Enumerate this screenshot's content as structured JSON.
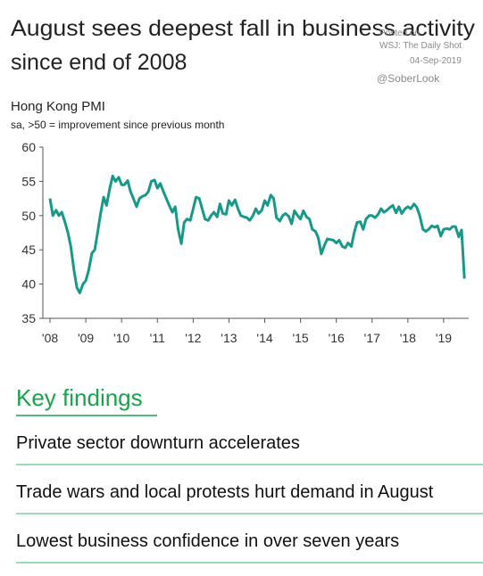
{
  "header": {
    "title": [
      "August sees deepest fall in business activity",
      "since end of 2008"
    ],
    "watermark": [
      "Posted on",
      "WSJ: The Daily Shot",
      "04-Sep-2019",
      "@SoberLook"
    ]
  },
  "chart_data": {
    "type": "line",
    "title": "Hong Kong PMI",
    "subtitle": "sa, >50 = improvement since previous month",
    "x": [
      2008.0,
      2008.08,
      2008.17,
      2008.25,
      2008.33,
      2008.42,
      2008.5,
      2008.58,
      2008.67,
      2008.75,
      2008.83,
      2008.92,
      2009.0,
      2009.08,
      2009.17,
      2009.25,
      2009.33,
      2009.42,
      2009.5,
      2009.58,
      2009.67,
      2009.75,
      2009.83,
      2009.92,
      2010.0,
      2010.08,
      2010.17,
      2010.25,
      2010.33,
      2010.42,
      2010.5,
      2010.58,
      2010.67,
      2010.75,
      2010.83,
      2010.92,
      2011.0,
      2011.08,
      2011.17,
      2011.25,
      2011.33,
      2011.42,
      2011.5,
      2011.58,
      2011.67,
      2011.75,
      2011.83,
      2011.92,
      2012.0,
      2012.08,
      2012.17,
      2012.25,
      2012.33,
      2012.42,
      2012.5,
      2012.58,
      2012.67,
      2012.75,
      2012.83,
      2012.92,
      2013.0,
      2013.08,
      2013.17,
      2013.25,
      2013.33,
      2013.42,
      2013.5,
      2013.58,
      2013.67,
      2013.75,
      2013.83,
      2013.92,
      2014.0,
      2014.08,
      2014.17,
      2014.25,
      2014.33,
      2014.42,
      2014.5,
      2014.58,
      2014.67,
      2014.75,
      2014.83,
      2014.92,
      2015.0,
      2015.08,
      2015.17,
      2015.25,
      2015.33,
      2015.42,
      2015.5,
      2015.58,
      2015.67,
      2015.75,
      2015.83,
      2015.92,
      2016.0,
      2016.08,
      2016.17,
      2016.25,
      2016.33,
      2016.42,
      2016.5,
      2016.58,
      2016.67,
      2016.75,
      2016.83,
      2016.92,
      2017.0,
      2017.08,
      2017.17,
      2017.25,
      2017.33,
      2017.42,
      2017.5,
      2017.58,
      2017.67,
      2017.75,
      2017.83,
      2017.92,
      2018.0,
      2018.08,
      2018.17,
      2018.25,
      2018.33,
      2018.42,
      2018.5,
      2018.58,
      2018.67,
      2018.75,
      2018.83,
      2018.92,
      2019.0,
      2019.08,
      2019.17,
      2019.25,
      2019.33,
      2019.42,
      2019.5,
      2019.58
    ],
    "series": [
      {
        "name": "Hong Kong PMI",
        "color": "#17998a",
        "values": [
          52.5,
          50,
          50.8,
          50,
          50.5,
          49,
          47.5,
          45.5,
          42,
          39.5,
          38.7,
          40,
          40.5,
          42,
          44.5,
          45,
          47.5,
          50.5,
          52.7,
          51.5,
          54,
          55.8,
          55,
          55.6,
          54.5,
          54.5,
          55.1,
          53.5,
          52.5,
          51.3,
          52.5,
          52.8,
          53,
          53.5,
          55,
          55.2,
          54,
          54.7,
          53.5,
          52.5,
          51.5,
          50.5,
          51.3,
          48,
          45.9,
          49,
          49.5,
          49.3,
          51,
          52.7,
          52.5,
          51,
          49.5,
          49.3,
          50,
          50.5,
          49.8,
          51.7,
          50.3,
          50.2,
          52.2,
          51.5,
          52.3,
          51,
          50,
          49.8,
          49.7,
          49.3,
          50,
          51,
          50.3,
          50.8,
          52.2,
          51.5,
          53,
          52.5,
          49.7,
          49.2,
          50,
          50.3,
          49.9,
          48.8,
          50.7,
          50,
          49.5,
          50.7,
          49.8,
          49.5,
          48,
          47.7,
          46.7,
          44.4,
          45.7,
          46.6,
          46.5,
          46.4,
          46,
          46.4,
          45.5,
          45.3,
          46,
          45.5,
          47.5,
          49,
          49.1,
          48,
          49.5,
          50,
          50,
          49.7,
          50.2,
          51,
          50.5,
          50.8,
          51.2,
          51.5,
          50.4,
          51.3,
          50.3,
          51,
          51.3,
          51,
          51.7,
          51.2,
          50,
          48,
          47.7,
          48,
          48.5,
          48.3,
          48.5,
          47,
          48,
          48.1,
          48,
          48.4,
          48.4,
          46.9,
          47.9,
          40.8
        ]
      }
    ],
    "xlim": [
      2007.8,
      2019.7
    ],
    "ylim": [
      35,
      60
    ],
    "xticks": [
      {
        "value": 2008,
        "label": "'08"
      },
      {
        "value": 2009,
        "label": "'09"
      },
      {
        "value": 2010,
        "label": "'10"
      },
      {
        "value": 2011,
        "label": "'11"
      },
      {
        "value": 2012,
        "label": "'12"
      },
      {
        "value": 2013,
        "label": "'13"
      },
      {
        "value": 2014,
        "label": "'14"
      },
      {
        "value": 2015,
        "label": "'15"
      },
      {
        "value": 2016,
        "label": "'16"
      },
      {
        "value": 2017,
        "label": "'17"
      },
      {
        "value": 2018,
        "label": "'18"
      },
      {
        "value": 2019,
        "label": "'19"
      }
    ],
    "yticks": [
      35,
      40,
      45,
      50,
      55,
      60
    ],
    "grid": false
  },
  "findings": {
    "heading": "Key findings",
    "items": [
      "Private sector downturn accelerates",
      "Trade wars and local protests hurt demand in August",
      "Lowest business confidence in over seven years"
    ]
  }
}
